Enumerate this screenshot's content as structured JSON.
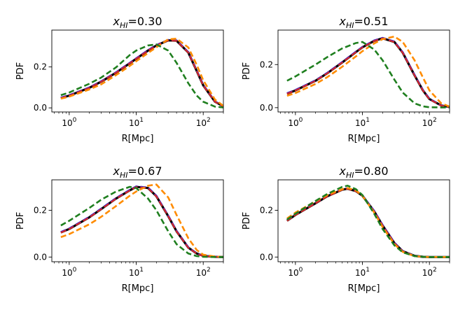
{
  "colors": {
    "black": "#000000",
    "blue": "#1f1fd6",
    "purple": "#7b2a8e",
    "orange": "#ff8c00",
    "green": "#1f7f1f",
    "red": "#d62728"
  },
  "chart_data": [
    {
      "type": "line",
      "title_var": "x",
      "title_sub": "HI",
      "title_value": "=0.30",
      "xlabel": "R[Mpc]",
      "ylabel": "PDF",
      "xscale": "log",
      "xlim": [
        0.55,
        200
      ],
      "ylim": [
        -0.02,
        0.38
      ],
      "xticks": [
        1,
        10,
        100
      ],
      "xtick_labels": [
        "10",
        "10",
        "10"
      ],
      "xtick_exponents": [
        "0",
        "1",
        "2"
      ],
      "yticks": [
        0.0,
        0.2
      ],
      "ytick_labels": [
        "0.0",
        "0.2"
      ],
      "x": [
        0.75,
        1,
        2,
        3,
        5,
        8,
        10,
        15,
        20,
        30,
        40,
        60,
        80,
        100,
        150,
        200
      ],
      "series": [
        {
          "name": "black",
          "style": "solid",
          "values": [
            0.048,
            0.06,
            0.098,
            0.128,
            0.172,
            0.218,
            0.24,
            0.28,
            0.305,
            0.33,
            0.328,
            0.27,
            0.18,
            0.11,
            0.03,
            0.008
          ]
        },
        {
          "name": "blue",
          "style": "dashed",
          "values": [
            0.05,
            0.062,
            0.1,
            0.13,
            0.174,
            0.22,
            0.242,
            0.282,
            0.307,
            0.332,
            0.33,
            0.272,
            0.182,
            0.112,
            0.031,
            0.008
          ]
        },
        {
          "name": "purple",
          "style": "dashed",
          "values": [
            0.049,
            0.061,
            0.099,
            0.129,
            0.173,
            0.219,
            0.241,
            0.281,
            0.306,
            0.331,
            0.329,
            0.271,
            0.181,
            0.111,
            0.03,
            0.008
          ]
        },
        {
          "name": "red",
          "style": "dashed",
          "values": [
            0.047,
            0.059,
            0.097,
            0.127,
            0.171,
            0.217,
            0.239,
            0.279,
            0.304,
            0.329,
            0.327,
            0.269,
            0.179,
            0.109,
            0.029,
            0.007
          ]
        },
        {
          "name": "orange",
          "style": "dashed",
          "values": [
            0.045,
            0.055,
            0.09,
            0.115,
            0.16,
            0.205,
            0.228,
            0.268,
            0.296,
            0.335,
            0.338,
            0.295,
            0.21,
            0.135,
            0.04,
            0.01
          ]
        },
        {
          "name": "green",
          "style": "dashed",
          "values": [
            0.062,
            0.075,
            0.118,
            0.148,
            0.198,
            0.258,
            0.28,
            0.305,
            0.31,
            0.28,
            0.22,
            0.12,
            0.06,
            0.03,
            0.006,
            0.002
          ]
        }
      ]
    },
    {
      "type": "line",
      "title_var": "x",
      "title_sub": "HI",
      "title_value": "=0.51",
      "xlabel": "R[Mpc]",
      "ylabel": "PDF",
      "xscale": "log",
      "xlim": [
        0.55,
        200
      ],
      "ylim": [
        -0.02,
        0.36
      ],
      "xticks": [
        1,
        10,
        100
      ],
      "xtick_labels": [
        "10",
        "10",
        "10"
      ],
      "xtick_exponents": [
        "0",
        "1",
        "2"
      ],
      "yticks": [
        0.0,
        0.2
      ],
      "ytick_labels": [
        "0.0",
        "0.2"
      ],
      "x": [
        0.75,
        1,
        2,
        3,
        5,
        8,
        10,
        15,
        20,
        30,
        40,
        60,
        80,
        100,
        150,
        200
      ],
      "series": [
        {
          "name": "black",
          "style": "solid",
          "values": [
            0.065,
            0.08,
            0.125,
            0.16,
            0.21,
            0.258,
            0.28,
            0.31,
            0.322,
            0.305,
            0.255,
            0.15,
            0.08,
            0.04,
            0.01,
            0.003
          ]
        },
        {
          "name": "blue",
          "style": "dashed",
          "values": [
            0.067,
            0.082,
            0.127,
            0.162,
            0.212,
            0.26,
            0.282,
            0.312,
            0.324,
            0.307,
            0.257,
            0.152,
            0.082,
            0.041,
            0.01,
            0.003
          ]
        },
        {
          "name": "purple",
          "style": "dashed",
          "values": [
            0.066,
            0.081,
            0.126,
            0.161,
            0.211,
            0.259,
            0.281,
            0.311,
            0.323,
            0.306,
            0.256,
            0.151,
            0.081,
            0.04,
            0.01,
            0.003
          ]
        },
        {
          "name": "red",
          "style": "dashed",
          "values": [
            0.064,
            0.079,
            0.124,
            0.159,
            0.209,
            0.257,
            0.279,
            0.309,
            0.321,
            0.304,
            0.254,
            0.149,
            0.079,
            0.039,
            0.009,
            0.002
          ]
        },
        {
          "name": "orange",
          "style": "dashed",
          "values": [
            0.055,
            0.068,
            0.11,
            0.142,
            0.19,
            0.238,
            0.262,
            0.298,
            0.318,
            0.33,
            0.305,
            0.22,
            0.14,
            0.08,
            0.02,
            0.005
          ]
        },
        {
          "name": "green",
          "style": "dashed",
          "values": [
            0.125,
            0.145,
            0.2,
            0.235,
            0.275,
            0.3,
            0.305,
            0.27,
            0.22,
            0.13,
            0.07,
            0.02,
            0.006,
            0.002,
            0.001,
            0.001
          ]
        }
      ]
    },
    {
      "type": "line",
      "title_var": "x",
      "title_sub": "HI",
      "title_value": "=0.67",
      "xlabel": "R[Mpc]",
      "ylabel": "PDF",
      "xscale": "log",
      "xlim": [
        0.55,
        200
      ],
      "ylim": [
        -0.02,
        0.33
      ],
      "xticks": [
        1,
        10,
        100
      ],
      "xtick_labels": [
        "10",
        "10",
        "10"
      ],
      "xtick_exponents": [
        "0",
        "1",
        "2"
      ],
      "yticks": [
        0.0,
        0.2
      ],
      "ytick_labels": [
        "0.0",
        "0.2"
      ],
      "x": [
        0.75,
        1,
        2,
        3,
        5,
        8,
        10,
        15,
        20,
        30,
        40,
        60,
        80,
        100,
        150,
        200
      ],
      "series": [
        {
          "name": "black",
          "style": "solid",
          "values": [
            0.105,
            0.12,
            0.17,
            0.205,
            0.25,
            0.285,
            0.3,
            0.295,
            0.26,
            0.175,
            0.11,
            0.04,
            0.015,
            0.005,
            0.001,
            0.0
          ]
        },
        {
          "name": "blue",
          "style": "dashed",
          "values": [
            0.107,
            0.122,
            0.172,
            0.207,
            0.252,
            0.287,
            0.302,
            0.297,
            0.262,
            0.177,
            0.112,
            0.041,
            0.015,
            0.005,
            0.001,
            0.0
          ]
        },
        {
          "name": "purple",
          "style": "dashed",
          "values": [
            0.106,
            0.121,
            0.171,
            0.206,
            0.251,
            0.286,
            0.301,
            0.296,
            0.261,
            0.176,
            0.111,
            0.04,
            0.015,
            0.005,
            0.001,
            0.0
          ]
        },
        {
          "name": "red",
          "style": "dashed",
          "values": [
            0.104,
            0.119,
            0.169,
            0.204,
            0.249,
            0.284,
            0.299,
            0.294,
            0.259,
            0.174,
            0.109,
            0.039,
            0.014,
            0.004,
            0.001,
            0.0
          ]
        },
        {
          "name": "orange",
          "style": "dashed",
          "values": [
            0.085,
            0.098,
            0.14,
            0.172,
            0.218,
            0.262,
            0.28,
            0.305,
            0.31,
            0.255,
            0.18,
            0.08,
            0.03,
            0.01,
            0.002,
            0.0
          ]
        },
        {
          "name": "green",
          "style": "dashed",
          "values": [
            0.135,
            0.155,
            0.21,
            0.245,
            0.28,
            0.3,
            0.295,
            0.25,
            0.2,
            0.11,
            0.055,
            0.015,
            0.004,
            0.001,
            0.0,
            0.0
          ]
        }
      ]
    },
    {
      "type": "line",
      "title_var": "x",
      "title_sub": "HI",
      "title_value": "=0.80",
      "xlabel": "R[Mpc]",
      "ylabel": "PDF",
      "xscale": "log",
      "xlim": [
        0.55,
        200
      ],
      "ylim": [
        -0.02,
        0.33
      ],
      "xticks": [
        1,
        10,
        100
      ],
      "xtick_labels": [
        "10",
        "10",
        "10"
      ],
      "xtick_exponents": [
        "0",
        "1",
        "2"
      ],
      "yticks": [
        0.0,
        0.2
      ],
      "ytick_labels": [
        "0.0",
        "0.2"
      ],
      "x": [
        0.75,
        1,
        2,
        3,
        5,
        6,
        8,
        10,
        15,
        20,
        30,
        40,
        60,
        80,
        100,
        150,
        200
      ],
      "series": [
        {
          "name": "black",
          "style": "solid",
          "values": [
            0.155,
            0.18,
            0.23,
            0.26,
            0.288,
            0.292,
            0.282,
            0.262,
            0.195,
            0.135,
            0.06,
            0.025,
            0.005,
            0.001,
            0.0,
            0.0,
            0.0
          ]
        },
        {
          "name": "blue",
          "style": "dashed",
          "values": [
            0.157,
            0.182,
            0.232,
            0.262,
            0.29,
            0.294,
            0.284,
            0.264,
            0.197,
            0.137,
            0.061,
            0.025,
            0.005,
            0.001,
            0.0,
            0.0,
            0.0
          ]
        },
        {
          "name": "purple",
          "style": "dashed",
          "values": [
            0.156,
            0.181,
            0.231,
            0.261,
            0.289,
            0.293,
            0.283,
            0.263,
            0.196,
            0.136,
            0.06,
            0.025,
            0.005,
            0.001,
            0.0,
            0.0,
            0.0
          ]
        },
        {
          "name": "red",
          "style": "dashed",
          "values": [
            0.154,
            0.179,
            0.229,
            0.259,
            0.287,
            0.291,
            0.281,
            0.261,
            0.194,
            0.134,
            0.059,
            0.024,
            0.004,
            0.001,
            0.0,
            0.0,
            0.0
          ]
        },
        {
          "name": "orange",
          "style": "dashed",
          "values": [
            0.165,
            0.19,
            0.238,
            0.265,
            0.29,
            0.295,
            0.285,
            0.262,
            0.19,
            0.128,
            0.055,
            0.022,
            0.004,
            0.001,
            0.0,
            0.0,
            0.0
          ]
        },
        {
          "name": "green",
          "style": "dashed",
          "values": [
            0.16,
            0.185,
            0.24,
            0.27,
            0.3,
            0.305,
            0.29,
            0.265,
            0.185,
            0.12,
            0.05,
            0.02,
            0.004,
            0.001,
            0.0,
            0.0,
            0.0
          ]
        }
      ]
    }
  ]
}
